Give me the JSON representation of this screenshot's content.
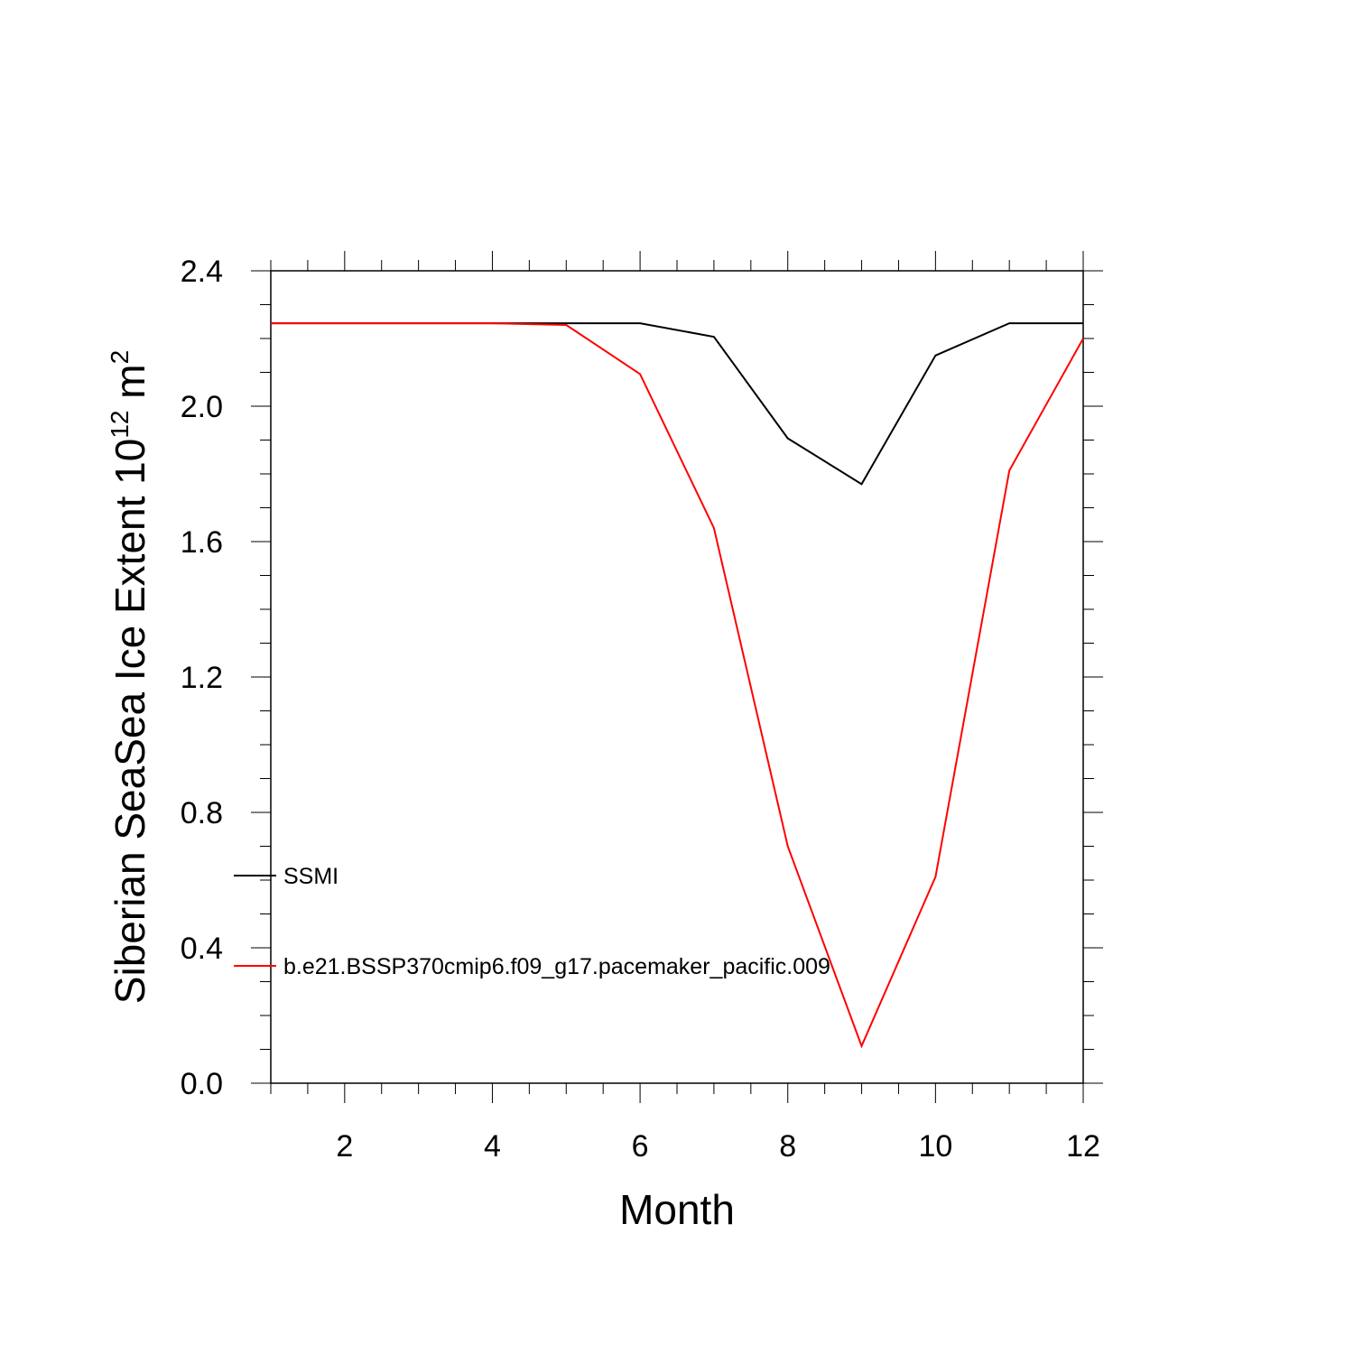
{
  "chart_data": {
    "type": "line",
    "x": [
      1,
      2,
      3,
      4,
      5,
      6,
      7,
      8,
      9,
      10,
      11,
      12
    ],
    "series": [
      {
        "name": "SSMI",
        "color": "#000000",
        "values": [
          2.245,
          2.245,
          2.245,
          2.245,
          2.245,
          2.245,
          2.205,
          1.905,
          1.77,
          2.15,
          2.245,
          2.245
        ]
      },
      {
        "name": "b.e21.BSSP370cmip6.f09_g17.pacemaker_pacific.009",
        "color": "#ff0000",
        "values": [
          2.245,
          2.245,
          2.245,
          2.245,
          2.24,
          2.095,
          1.64,
          0.7,
          0.11,
          0.61,
          1.81,
          2.2
        ]
      }
    ],
    "xlabel": "Month",
    "ylabel_main": "Siberian SeaSea Ice Extent 10",
    "ylabel_exp": "12",
    "ylabel_unit": " m",
    "ylabel_unit_exp": "2",
    "xlim": [
      1,
      12
    ],
    "ylim": [
      0,
      2.4
    ],
    "xticks": [
      2,
      4,
      6,
      8,
      10,
      12
    ],
    "xtick_labels": [
      "2",
      "4",
      "6",
      "8",
      "10",
      "12"
    ],
    "yticks": [
      0,
      0.4,
      0.8,
      1.2,
      1.6,
      2.0,
      2.4
    ],
    "ytick_labels": [
      "0.0",
      "0.4",
      "0.8",
      "1.2",
      "1.6",
      "2.0",
      "2.4"
    ],
    "grid": false,
    "legend_position": "left-bottom-inside"
  }
}
